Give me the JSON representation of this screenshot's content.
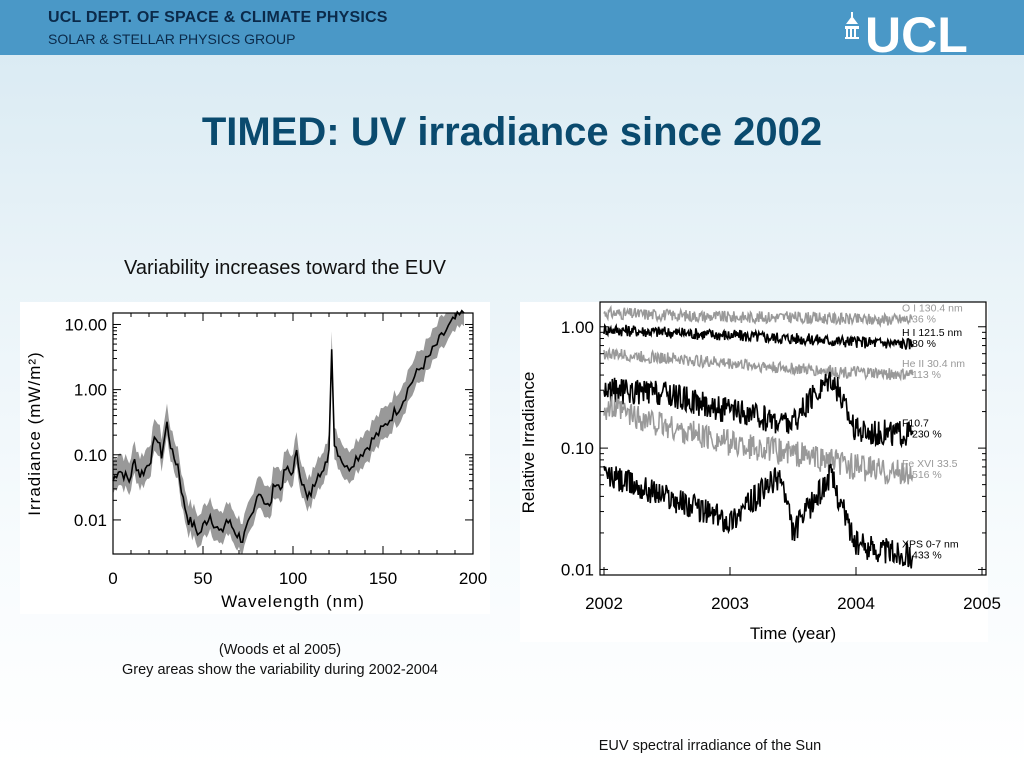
{
  "header": {
    "dept": "UCL DEPT. OF SPACE & CLIMATE PHYSICS",
    "group": "SOLAR & STELLAR PHYSICS GROUP",
    "logo_text": "UCL"
  },
  "slide": {
    "title": "TIMED: UV irradiance since 2002",
    "subtitle": "Variability increases toward the EUV",
    "caption_source": "(Woods et al 2005)",
    "caption_note": "Grey areas show the variability during 2002-2004",
    "caption_bottom": "EUV spectral irradiance of the Sun"
  },
  "colors": {
    "banner": "#4a98c7",
    "title": "#0a4a6e",
    "band": "#999999",
    "line": "#000000",
    "grey_series": "#999999"
  },
  "chart_data": [
    {
      "type": "line",
      "xlabel": "Wavelength (nm)",
      "ylabel": "Irradiance (mW/m²)",
      "y_scale": "log",
      "xlim": [
        0,
        200
      ],
      "ylim": [
        0.003,
        15
      ],
      "x_ticks": [
        "0",
        "50",
        "100",
        "150",
        "200"
      ],
      "y_ticks": [
        "10.00",
        "1.00",
        "0.10",
        "0.01"
      ],
      "grey_band": true,
      "series": [
        {
          "x": [
            0,
            3,
            6,
            9,
            12,
            15,
            18,
            21,
            24,
            27,
            30,
            33,
            36,
            39,
            42,
            45,
            48,
            51,
            54,
            57,
            60,
            63,
            66,
            69,
            72,
            75,
            78,
            81,
            84,
            87,
            90,
            93,
            96,
            99,
            102,
            105,
            108,
            111,
            114,
            117,
            120,
            121.5,
            123,
            126,
            130,
            135,
            140,
            145,
            150,
            155,
            160,
            165,
            170,
            175,
            180,
            185,
            190,
            195
          ],
          "y": [
            0.04,
            0.06,
            0.05,
            0.04,
            0.08,
            0.05,
            0.06,
            0.09,
            0.2,
            0.1,
            0.3,
            0.1,
            0.07,
            0.02,
            0.01,
            0.008,
            0.006,
            0.009,
            0.012,
            0.008,
            0.006,
            0.01,
            0.008,
            0.006,
            0.005,
            0.008,
            0.012,
            0.03,
            0.02,
            0.015,
            0.04,
            0.03,
            0.06,
            0.05,
            0.1,
            0.04,
            0.02,
            0.03,
            0.06,
            0.05,
            0.12,
            5,
            0.15,
            0.1,
            0.06,
            0.09,
            0.12,
            0.18,
            0.25,
            0.4,
            0.6,
            1.2,
            2,
            3,
            5,
            8,
            12,
            15
          ]
        }
      ]
    },
    {
      "type": "line",
      "xlabel": "Time (year)",
      "ylabel": "Relative Irradiance",
      "y_scale": "log",
      "xlim": [
        2002.0,
        2005.0
      ],
      "ylim": [
        0.009,
        1.6
      ],
      "x_ticks": [
        "2002",
        "2003",
        "2004",
        "2005"
      ],
      "y_ticks": [
        "1.00",
        "0.10",
        "0.01"
      ],
      "series": [
        {
          "name": "O I 130.4 nm",
          "variability": "36 %",
          "color": "#999999",
          "x": [
            2002.0,
            2002.5,
            2003.0,
            2003.5,
            2004.0,
            2004.45
          ],
          "y": [
            1.3,
            1.25,
            1.2,
            1.2,
            1.15,
            1.15
          ]
        },
        {
          "name": "H I 121.5 nm",
          "variability": "80 %",
          "color": "#000000",
          "x": [
            2002.0,
            2002.5,
            2003.0,
            2003.5,
            2004.0,
            2004.45
          ],
          "y": [
            0.95,
            0.9,
            0.85,
            0.8,
            0.75,
            0.72
          ]
        },
        {
          "name": "He II 30.4 nm",
          "variability": "113 %",
          "color": "#999999",
          "x": [
            2002.0,
            2002.5,
            2003.0,
            2003.5,
            2004.0,
            2004.45
          ],
          "y": [
            0.6,
            0.55,
            0.5,
            0.45,
            0.42,
            0.4
          ]
        },
        {
          "name": "F10.7",
          "variability": "230 %",
          "color": "#000000",
          "x": [
            2002.0,
            2002.5,
            2003.0,
            2003.5,
            2003.8,
            2004.0,
            2004.45
          ],
          "y": [
            0.3,
            0.28,
            0.2,
            0.16,
            0.4,
            0.14,
            0.13
          ]
        },
        {
          "name": "Fe XVI 33.5",
          "variability": "516 %",
          "color": "#999999",
          "x": [
            2002.0,
            2002.5,
            2003.0,
            2003.5,
            2004.0,
            2004.45
          ],
          "y": [
            0.22,
            0.15,
            0.11,
            0.09,
            0.07,
            0.06
          ]
        },
        {
          "name": "XPS 0-7 nm",
          "variability": "433 %",
          "color": "#000000",
          "x": [
            2002.0,
            2002.5,
            2003.0,
            2003.4,
            2003.5,
            2003.8,
            2004.0,
            2004.45
          ],
          "y": [
            0.06,
            0.04,
            0.025,
            0.06,
            0.02,
            0.06,
            0.016,
            0.013
          ]
        }
      ]
    }
  ]
}
